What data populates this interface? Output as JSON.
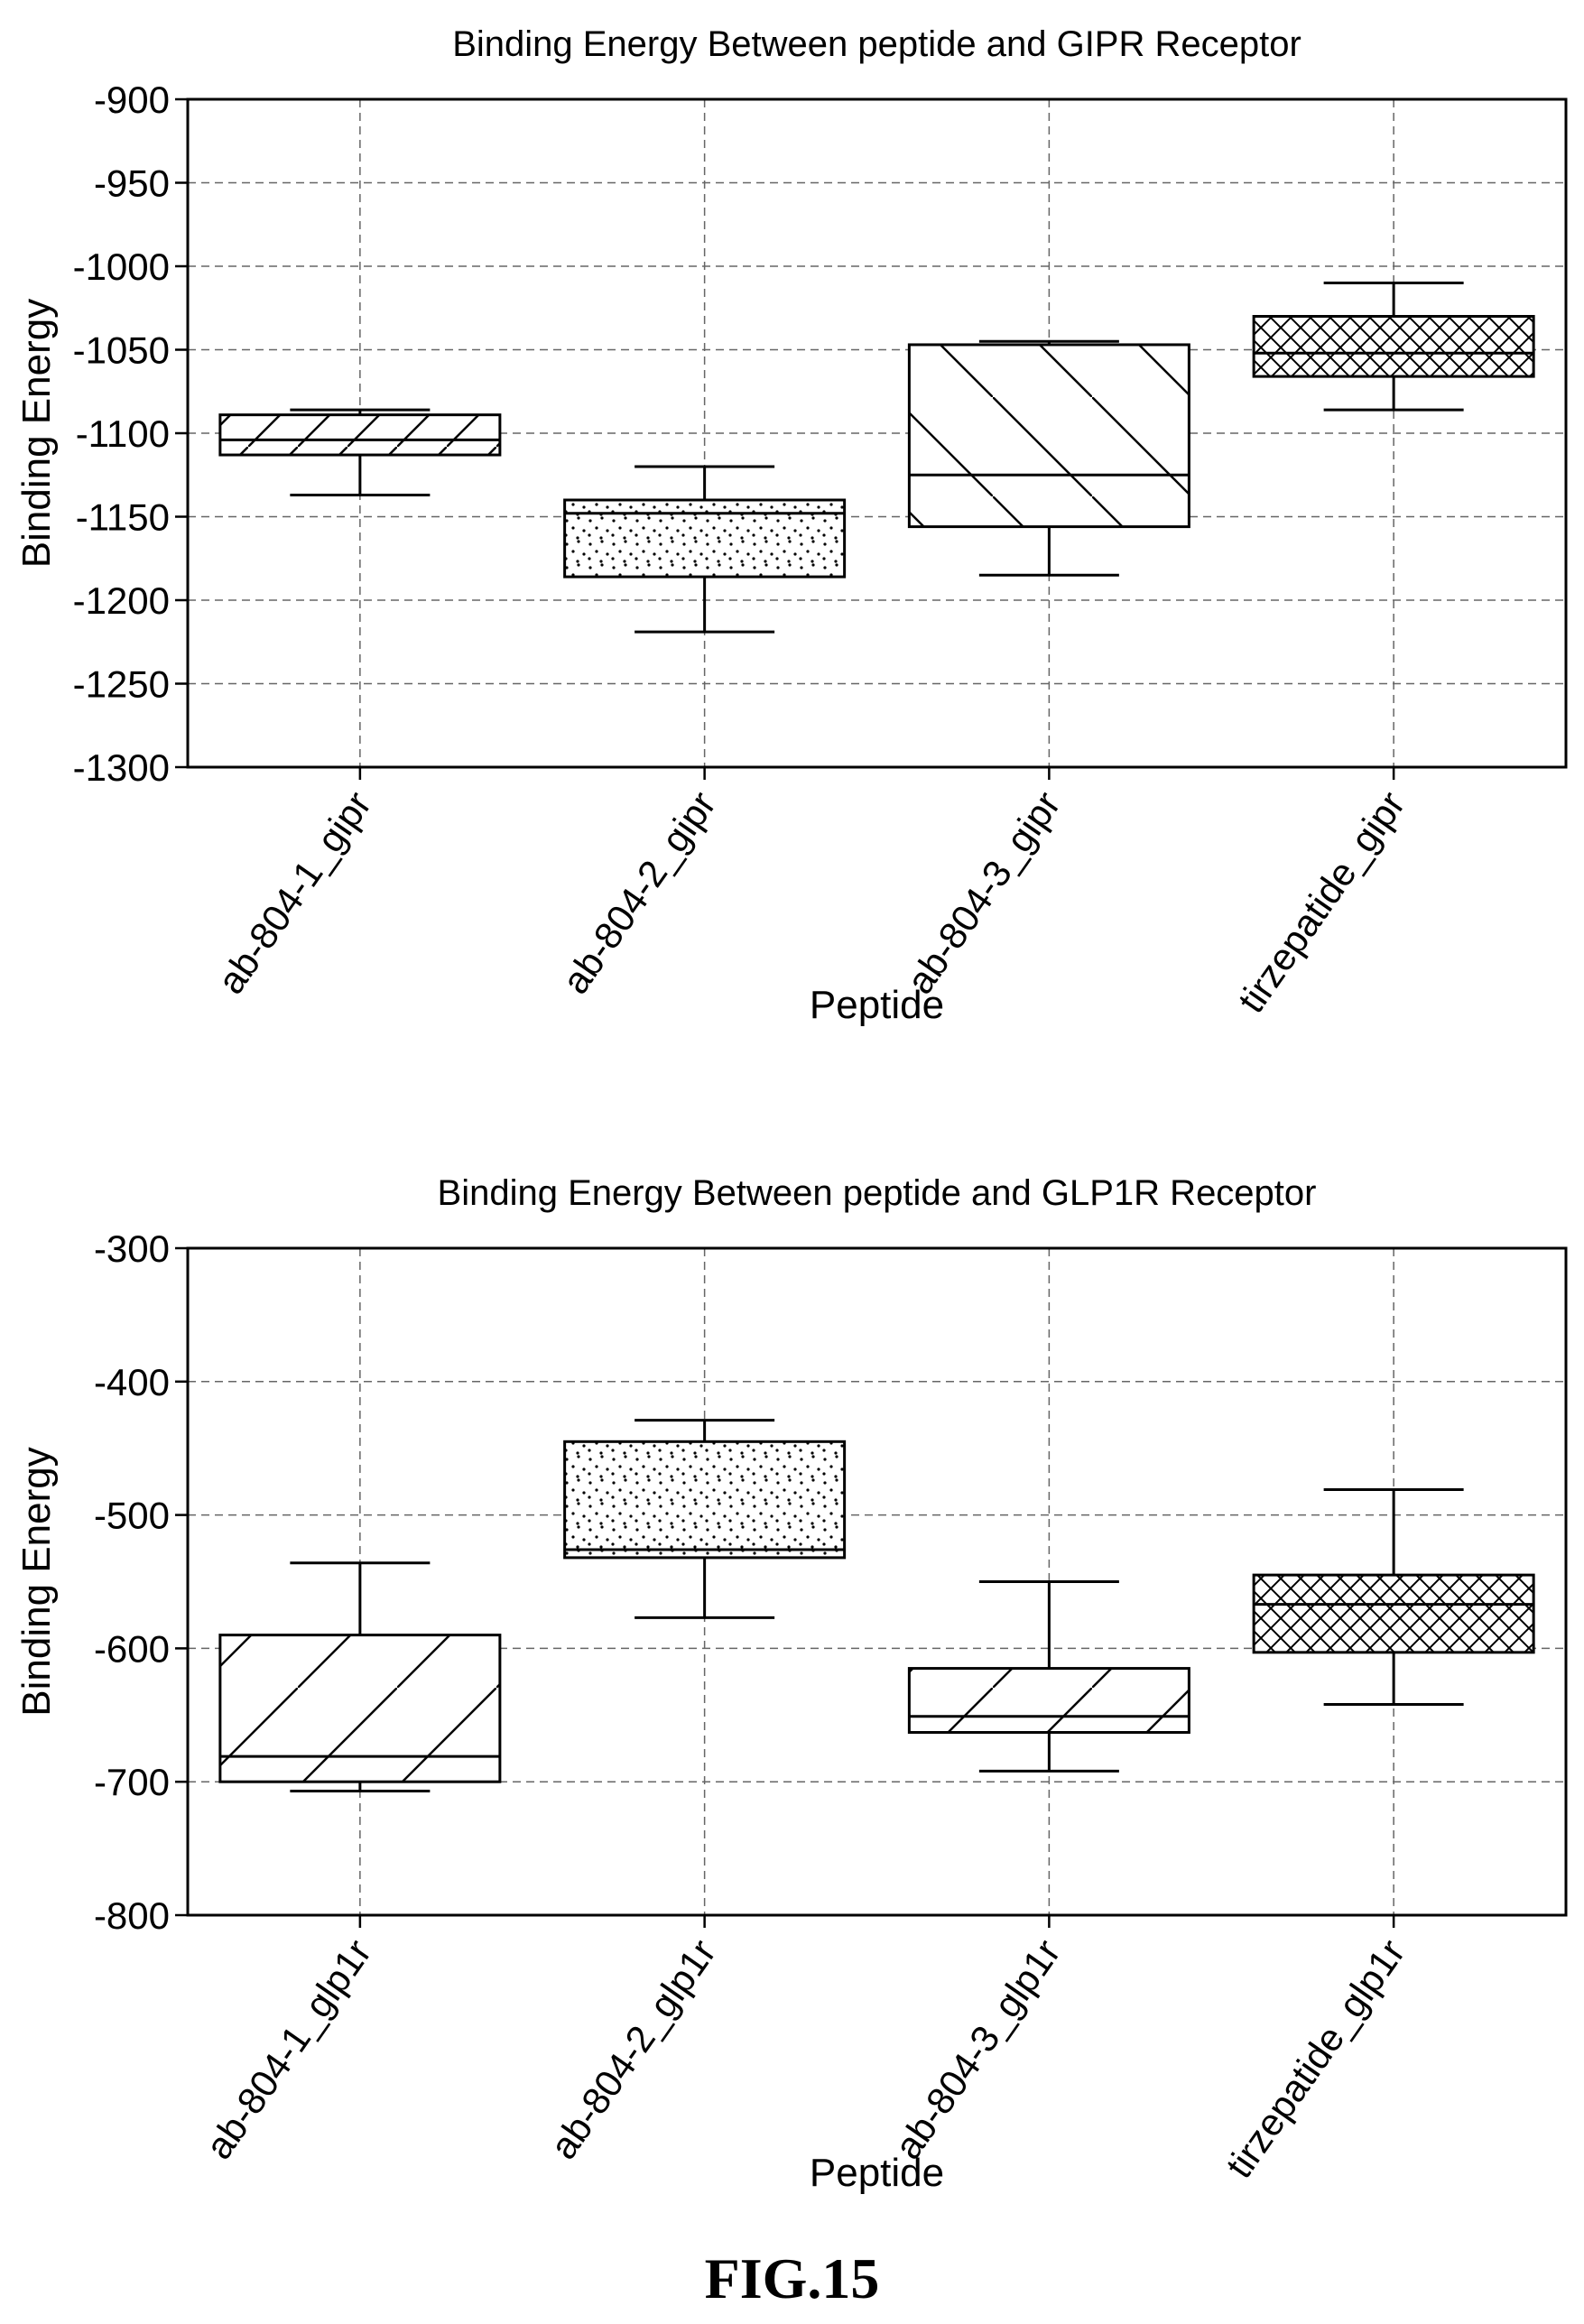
{
  "figure": {
    "caption": "FIG.15"
  },
  "chart_data": [
    {
      "type": "box",
      "title": "Binding Energy Between peptide and GIPR Receptor",
      "xlabel": "Peptide",
      "ylabel": "Binding Energy",
      "ylim": [
        -1300,
        -900
      ],
      "yticks": [
        -900,
        -950,
        -1000,
        -1050,
        -1100,
        -1150,
        -1200,
        -1250,
        -1300
      ],
      "grid": true,
      "categories": [
        "ab-804-1_gipr",
        "ab-804-2_gipr",
        "ab-804-3_gipr",
        "tirzepatide_gipr"
      ],
      "boxes": [
        {
          "category": "ab-804-1_gipr",
          "min": -1137,
          "q1": -1113,
          "median": -1104,
          "q3": -1089,
          "max": -1086,
          "pattern": "diag-down"
        },
        {
          "category": "ab-804-2_gipr",
          "min": -1219,
          "q1": -1186,
          "median": -1148,
          "q3": -1140,
          "max": -1120,
          "pattern": "dots"
        },
        {
          "category": "ab-804-3_gipr",
          "min": -1185,
          "q1": -1156,
          "median": -1125,
          "q3": -1047,
          "max": -1045,
          "pattern": "diag-up"
        },
        {
          "category": "tirzepatide_gipr",
          "min": -1086,
          "q1": -1066,
          "median": -1052,
          "q3": -1030,
          "max": -1010,
          "pattern": "crosshatch"
        }
      ]
    },
    {
      "type": "box",
      "title": "Binding Energy Between peptide and GLP1R Receptor",
      "xlabel": "Peptide",
      "ylabel": "Binding Energy",
      "ylim": [
        -800,
        -300
      ],
      "yticks": [
        -300,
        -400,
        -500,
        -600,
        -700,
        -800
      ],
      "grid": true,
      "categories": [
        "ab-804-1_glp1r",
        "ab-804-2_glp1r",
        "ab-804-3_glp1r",
        "tirzepatide_glp1r"
      ],
      "boxes": [
        {
          "category": "ab-804-1_glp1r",
          "min": -707,
          "q1": -700,
          "median": -681,
          "q3": -590,
          "max": -536,
          "pattern": "diag-down"
        },
        {
          "category": "ab-804-2_glp1r",
          "min": -577,
          "q1": -532,
          "median": -526,
          "q3": -445,
          "max": -429,
          "pattern": "dots"
        },
        {
          "category": "ab-804-3_glp1r",
          "min": -692,
          "q1": -663,
          "median": -651,
          "q3": -615,
          "max": -550,
          "pattern": "diag-down"
        },
        {
          "category": "tirzepatide_glp1r",
          "min": -642,
          "q1": -603,
          "median": -567,
          "q3": -545,
          "max": -481,
          "pattern": "crosshatch"
        }
      ]
    }
  ]
}
